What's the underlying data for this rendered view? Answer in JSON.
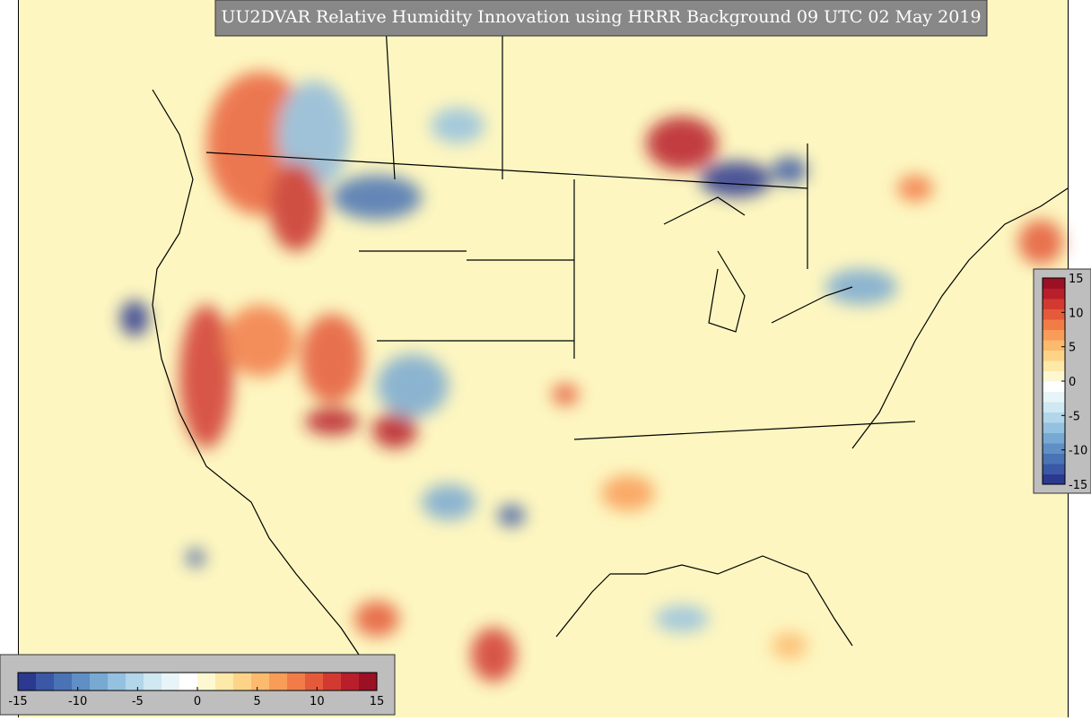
{
  "title": "UU2DVAR Relative Humidity Innovation using HRRR Background 09 UTC 02 May 2019",
  "colorbars": [
    {
      "orientation": "vertical",
      "lim": [
        -15,
        15
      ],
      "ticks": [
        15,
        10,
        5,
        0,
        -5,
        -10,
        -15
      ]
    },
    {
      "orientation": "horizontal",
      "lim": [
        -15,
        15
      ],
      "ticks": [
        -15,
        -10,
        -5,
        0,
        5,
        10,
        15
      ]
    }
  ],
  "colors": [
    "#2b3990",
    "#3a58a6",
    "#4a73b5",
    "#5f8fc5",
    "#78a9d3",
    "#94c1e0",
    "#b2d6ea",
    "#cfe8f2",
    "#e8f5f8",
    "#ffffff",
    "#fdf8d2",
    "#fde9a8",
    "#fdd487",
    "#fcba6e",
    "#f99c58",
    "#f27c48",
    "#e45a3a",
    "#d23a31",
    "#b81f2b",
    "#9b1025"
  ]
}
